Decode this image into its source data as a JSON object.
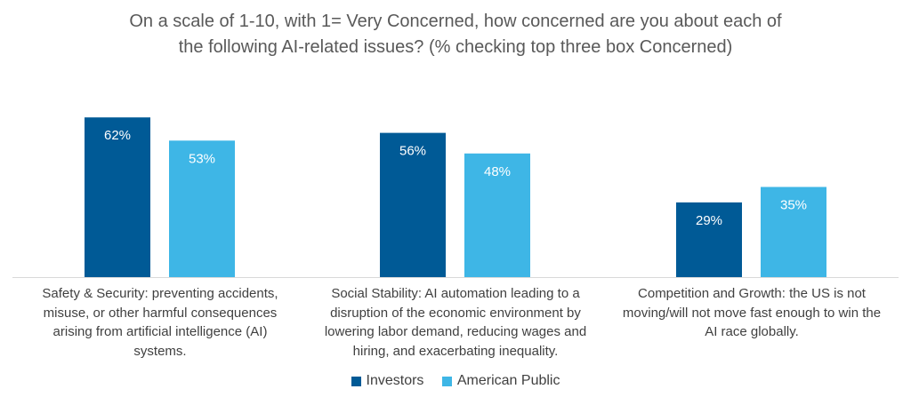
{
  "chart_data": {
    "type": "bar",
    "title_lines": [
      "On a scale of 1-10, with 1= Very Concerned, how concerned are you about each of",
      "the following AI-related issues? (% checking top three box Concerned)"
    ],
    "categories": [
      "Safety & Security: preventing accidents, misuse, or other harmful consequences arising from artificial intelligence (AI) systems.",
      "Social Stability: AI automation leading to a disruption of the economic environment by lowering labor demand, reducing wages and hiring, and exacerbating inequality.",
      "Competition and Growth: the US is not moving/will not move fast enough to win the AI race globally."
    ],
    "category_lines": [
      [
        "Safety & Security: preventing accidents,",
        "misuse, or other harmful consequences",
        "arising from artificial intelligence (AI)",
        "systems."
      ],
      [
        "Social Stability: AI automation leading to a",
        "disruption of the economic environment by",
        "lowering labor demand, reducing wages and",
        "hiring, and exacerbating inequality."
      ],
      [
        "Competition and Growth: the US is not",
        "moving/will not move fast enough to win the",
        "AI race globally."
      ]
    ],
    "series": [
      {
        "name": "Investors",
        "values": [
          62,
          56,
          29
        ],
        "color": "#005a96"
      },
      {
        "name": "American Public",
        "values": [
          53,
          48,
          35
        ],
        "color": "#3eb6e6"
      }
    ],
    "value_suffix": "%",
    "ylim": [
      0,
      70
    ],
    "grid": false,
    "legend_position": "bottom"
  }
}
